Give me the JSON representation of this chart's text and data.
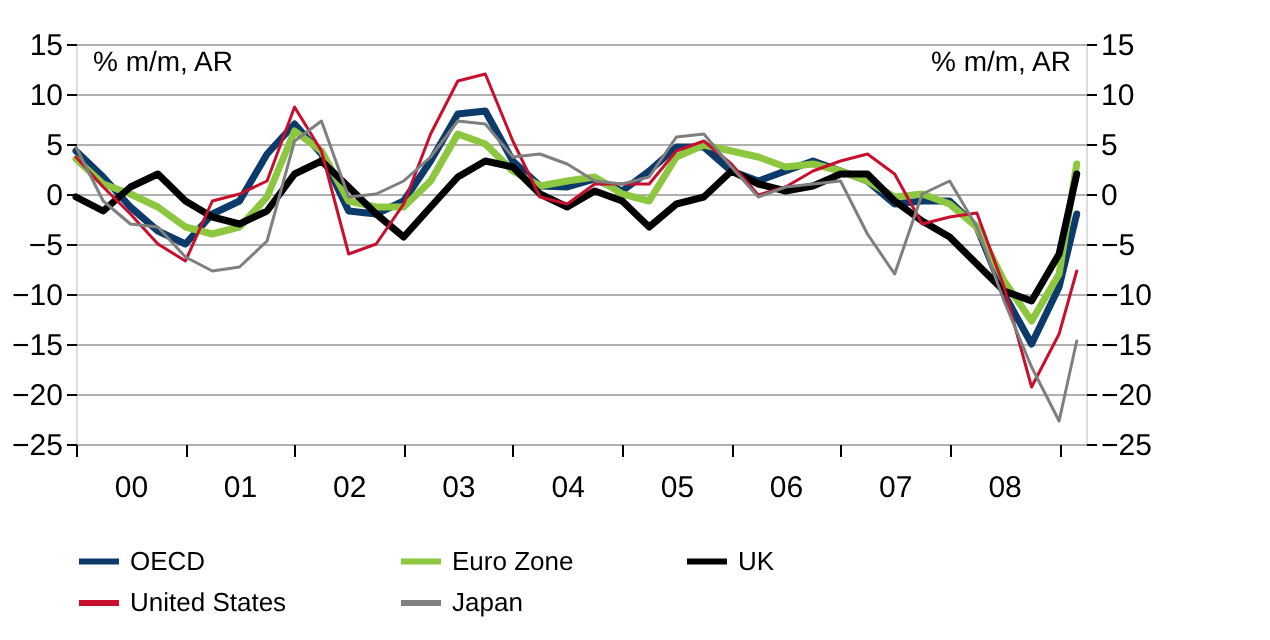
{
  "chart_data": {
    "type": "line",
    "ylabel": "% m/m, AR",
    "y2label": "% m/m, AR",
    "x": [
      "2000-01",
      "2000-04",
      "2000-07",
      "2000-10",
      "2001-01",
      "2001-04",
      "2001-07",
      "2001-10",
      "2002-01",
      "2002-04",
      "2002-07",
      "2002-10",
      "2003-01",
      "2003-04",
      "2003-07",
      "2003-10",
      "2004-01",
      "2004-04",
      "2004-07",
      "2004-10",
      "2005-01",
      "2005-04",
      "2005-07",
      "2005-10",
      "2006-01",
      "2006-04",
      "2006-07",
      "2006-10",
      "2007-01",
      "2007-04",
      "2007-07",
      "2007-10",
      "2008-01",
      "2008-04",
      "2008-07",
      "2008-10",
      "2009-01",
      "2009-03"
    ],
    "series": [
      {
        "name": "OECD",
        "color": "#0b3a6b",
        "values": [
          4.3,
          1.7,
          -1.3,
          -3.7,
          -5,
          -2,
          -0.7,
          4,
          7,
          4,
          -1.7,
          -2,
          -0.7,
          3.3,
          8,
          8.3,
          3.3,
          0.8,
          0.7,
          1.5,
          0.3,
          2.3,
          4.7,
          4.7,
          2.3,
          1.3,
          2.3,
          3.3,
          2.3,
          1.3,
          -1,
          -0.7,
          -0.7,
          -3.3,
          -10,
          -15,
          -9.3,
          -2
        ]
      },
      {
        "name": "Euro Zone",
        "color": "#8dc63f",
        "values": [
          3.5,
          1,
          0,
          -1.3,
          -3.3,
          -4,
          -3.3,
          -0.3,
          6.3,
          4.3,
          -0.7,
          -1.3,
          -1.3,
          1.3,
          6,
          5,
          2.3,
          0.8,
          1.3,
          1.7,
          0,
          -0.7,
          3.7,
          4.9,
          4.3,
          3.7,
          2.7,
          3,
          2.3,
          1.3,
          -0.3,
          0,
          -1,
          -3.3,
          -8.7,
          -12.7,
          -8,
          3
        ]
      },
      {
        "name": "UK",
        "color": "#000000",
        "values": [
          -0.3,
          -1.7,
          0.7,
          2,
          -0.7,
          -2.3,
          -3,
          -1.7,
          2,
          3.3,
          0.7,
          -2,
          -4.3,
          -1.3,
          1.7,
          3.3,
          2.7,
          0,
          -1.3,
          0.3,
          -0.7,
          -3.3,
          -1,
          -0.3,
          2.3,
          1,
          0.3,
          0.8,
          2,
          2,
          -0.7,
          -2.7,
          -4.3,
          -7,
          -9.7,
          -10.7,
          -6,
          2
        ]
      },
      {
        "name": "United States",
        "color": "#c8102e",
        "values": [
          3.7,
          0.7,
          -2,
          -5,
          -6.7,
          -0.7,
          0,
          1.3,
          8.7,
          4.3,
          -6,
          -5,
          -1,
          6,
          11.3,
          12,
          5.3,
          -0.3,
          -1,
          1,
          1,
          1,
          4.3,
          5.3,
          3,
          -0.1,
          0.7,
          2.3,
          3.3,
          4,
          2,
          -3,
          -2.3,
          -1.9,
          -9.3,
          -19.3,
          -14,
          -7.7
        ]
      },
      {
        "name": "Japan",
        "color": "#7f7f7f",
        "values": [
          4.7,
          -0.7,
          -3,
          -3.3,
          -6.3,
          -7.7,
          -7.3,
          -4.7,
          5.3,
          7.3,
          -0.3,
          0,
          1.3,
          3.7,
          7.3,
          7,
          3.7,
          4,
          3,
          1.3,
          1,
          1.7,
          5.7,
          6,
          2.7,
          -0.3,
          0.7,
          1,
          1.3,
          -4,
          -8,
          0,
          1.3,
          -3.3,
          -10.7,
          -17.3,
          -22.7,
          -14.7
        ]
      }
    ],
    "xlim": [
      "2000-01",
      "2009-04"
    ],
    "xticks": [
      {
        "value": "2000-01",
        "label": null
      },
      {
        "value": "2000-07",
        "label": "00"
      },
      {
        "value": "2001-01",
        "label": null
      },
      {
        "value": "2001-07",
        "label": "01"
      },
      {
        "value": "2002-01",
        "label": null
      },
      {
        "value": "2002-07",
        "label": "02"
      },
      {
        "value": "2003-01",
        "label": null
      },
      {
        "value": "2003-07",
        "label": "03"
      },
      {
        "value": "2004-01",
        "label": null
      },
      {
        "value": "2004-07",
        "label": "04"
      },
      {
        "value": "2005-01",
        "label": null
      },
      {
        "value": "2005-07",
        "label": "05"
      },
      {
        "value": "2006-01",
        "label": null
      },
      {
        "value": "2006-07",
        "label": "06"
      },
      {
        "value": "2007-01",
        "label": null
      },
      {
        "value": "2007-07",
        "label": "07"
      },
      {
        "value": "2008-01",
        "label": null
      },
      {
        "value": "2008-07",
        "label": "08"
      },
      {
        "value": "2009-01",
        "label": null
      }
    ],
    "ylim": [
      -25,
      15
    ],
    "yticks": [
      -25,
      -20,
      -15,
      -10,
      -5,
      0,
      5,
      10,
      15
    ],
    "y2lim": [
      -25,
      15
    ],
    "y2ticks": [
      -25,
      -20,
      -15,
      -10,
      -5,
      0,
      5,
      10,
      15
    ],
    "grid": "y",
    "legend": "bottom",
    "marker": "none",
    "line_style": "solid"
  }
}
